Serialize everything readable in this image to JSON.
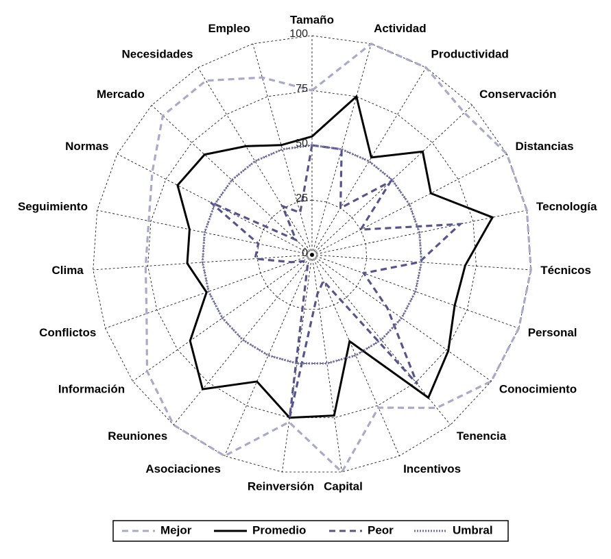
{
  "chart_data": {
    "type": "radar",
    "categories": [
      "Tamaño",
      "Actividad",
      "Productividad",
      "Conservación",
      "Distancias",
      "Tecnología",
      "Técnicos",
      "Personal",
      "Conocimiento",
      "Tenencia",
      "Incentivos",
      "Capital",
      "Reinversión",
      "Asociaciones",
      "Reuniones",
      "Información",
      "Conflictos",
      "Clima",
      "Seguimiento",
      "Normas",
      "Mercado",
      "Necesidades",
      "Empleo"
    ],
    "series": [
      {
        "name": "Mejor",
        "color": "#a9a9c8",
        "dash": "dashed",
        "values": [
          75,
          100,
          100,
          95,
          100,
          100,
          100,
          100,
          100,
          90,
          76,
          100,
          77,
          100,
          100,
          92,
          80,
          76,
          76,
          82,
          93,
          93,
          84
        ]
      },
      {
        "name": "Promedio",
        "color": "#000000",
        "dash": "solid",
        "values": [
          54,
          75,
          52,
          69,
          61,
          84,
          70,
          69,
          76,
          84,
          43,
          74,
          75,
          63,
          79,
          68,
          51,
          57,
          57,
          69,
          67,
          58,
          52
        ]
      },
      {
        "name": "Peor",
        "color": "#55558a",
        "dash": "dashed",
        "values": [
          50,
          50,
          25,
          49,
          25,
          69,
          49,
          25,
          42,
          76,
          13,
          18,
          75,
          5,
          5,
          5,
          10,
          26,
          25,
          52,
          10,
          26,
          20
        ]
      },
      {
        "name": "Umbral",
        "color": "#7070a8",
        "dash": "dotted",
        "values": [
          50,
          50,
          50,
          50,
          50,
          50,
          50,
          50,
          50,
          50,
          50,
          50,
          50,
          50,
          50,
          50,
          50,
          50,
          50,
          50,
          50,
          50,
          50
        ]
      }
    ],
    "rlim": [
      0,
      100
    ],
    "rticks": [
      0,
      25,
      50,
      75,
      100
    ],
    "grid": true,
    "legend": "bottom"
  }
}
